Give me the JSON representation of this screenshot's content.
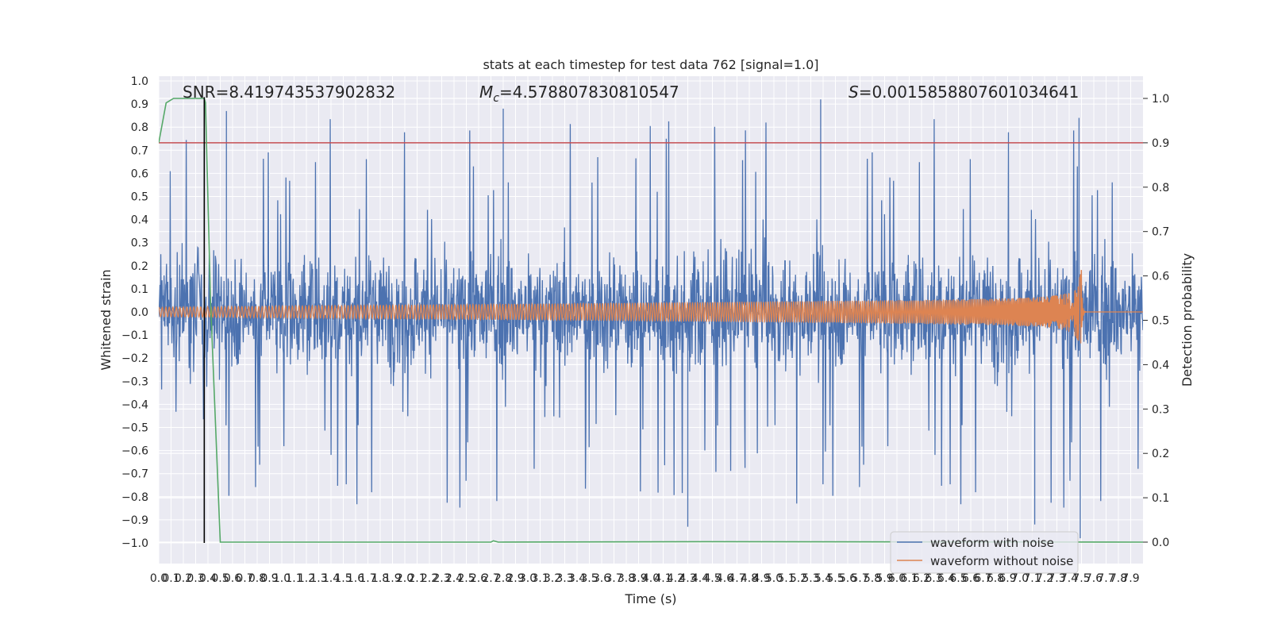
{
  "chart_data": {
    "type": "line",
    "title": "stats at each timestep for test data 762 [signal=1.0]",
    "xlabel": "Time (s)",
    "ylabel": "Whitened strain",
    "y2label": "Detection probability",
    "xlim": [
      0,
      8.0
    ],
    "ylim": [
      -1.1,
      1.0
    ],
    "y2lim": [
      -0.05,
      1.04
    ],
    "xticks": [
      "0.0",
      "0.1",
      "0.2",
      "0.3",
      "0.4",
      "0.5",
      "0.6",
      "0.7",
      "0.8",
      "0.9",
      "1.0",
      "1.1",
      "1.2",
      "1.3",
      "1.4",
      "1.5",
      "1.6",
      "1.7",
      "1.8",
      "1.9",
      "2.0",
      "2.1",
      "2.2",
      "2.3",
      "2.4",
      "2.5",
      "2.6",
      "2.7",
      "2.8",
      "2.9",
      "3.0",
      "3.1",
      "3.2",
      "3.3",
      "3.4",
      "3.5",
      "3.6",
      "3.7",
      "3.8",
      "3.9",
      "4.0",
      "4.1",
      "4.2",
      "4.3",
      "4.4",
      "4.5",
      "4.6",
      "4.7",
      "4.8",
      "4.9",
      "5.0",
      "5.1",
      "5.2",
      "5.3",
      "5.4",
      "5.5",
      "5.6",
      "5.7",
      "5.8",
      "5.9",
      "6.0",
      "6.1",
      "6.2",
      "6.3",
      "6.4",
      "6.5",
      "6.6",
      "6.7",
      "6.8",
      "6.9",
      "7.0",
      "7.1",
      "7.2",
      "7.3",
      "7.4",
      "7.5",
      "7.6",
      "7.7",
      "7.8",
      "7.9"
    ],
    "yticks": [
      "1.0",
      "0.9",
      "0.8",
      "0.7",
      "0.6",
      "0.5",
      "0.4",
      "0.3",
      "0.2",
      "0.1",
      "0.0",
      "−0.1",
      "−0.2",
      "−0.3",
      "−0.4",
      "−0.5",
      "−0.6",
      "−0.7",
      "−0.8",
      "−0.9",
      "−1.0"
    ],
    "y2ticks": [
      "1.0",
      "0.9",
      "0.8",
      "0.7",
      "0.6",
      "0.5",
      "0.4",
      "0.3",
      "0.2",
      "0.1",
      "0.0"
    ],
    "annotations": [
      {
        "prefix": "SNR",
        "subscript": "",
        "value": "=8.419743537902832"
      },
      {
        "prefix": "M",
        "subscript": "c",
        "value": "=4.578807830810547"
      },
      {
        "prefix": "S",
        "subscript": "",
        "value": "=0.0015858807601034641"
      }
    ],
    "series": [
      {
        "name": "waveform with noise",
        "color": "#4c72b0",
        "axis": "left",
        "kind": "noise",
        "envelope_typical": 0.35,
        "peak_max": 0.92,
        "trough_min": -0.98
      },
      {
        "name": "waveform without noise",
        "color": "#dd8452",
        "axis": "left",
        "kind": "chirp",
        "start_amplitude": 0.02,
        "peak_amplitude": 0.18,
        "merger_time": 7.5,
        "end_time": 8.0
      },
      {
        "name": "detection probability",
        "color": "#55a868",
        "axis": "right",
        "x": [
          0.0,
          0.06,
          0.12,
          0.37,
          0.38,
          0.42,
          0.5,
          2.7,
          2.72,
          2.76,
          4.5,
          8.0
        ],
        "y": [
          0.9,
          0.99,
          1.0,
          1.0,
          0.99,
          0.55,
          0.0,
          0.0,
          0.003,
          0.0,
          0.001,
          0.0
        ]
      }
    ],
    "threshold": {
      "axis": "right",
      "value": 0.9,
      "color": "#c44e52"
    },
    "marker_line": {
      "x": 0.37,
      "y_from": -1.0,
      "y_to": 0.93,
      "color": "#000000"
    },
    "legend": {
      "placement": "lower-right",
      "entries": [
        "waveform with noise",
        "waveform without noise"
      ]
    },
    "grid": true
  }
}
